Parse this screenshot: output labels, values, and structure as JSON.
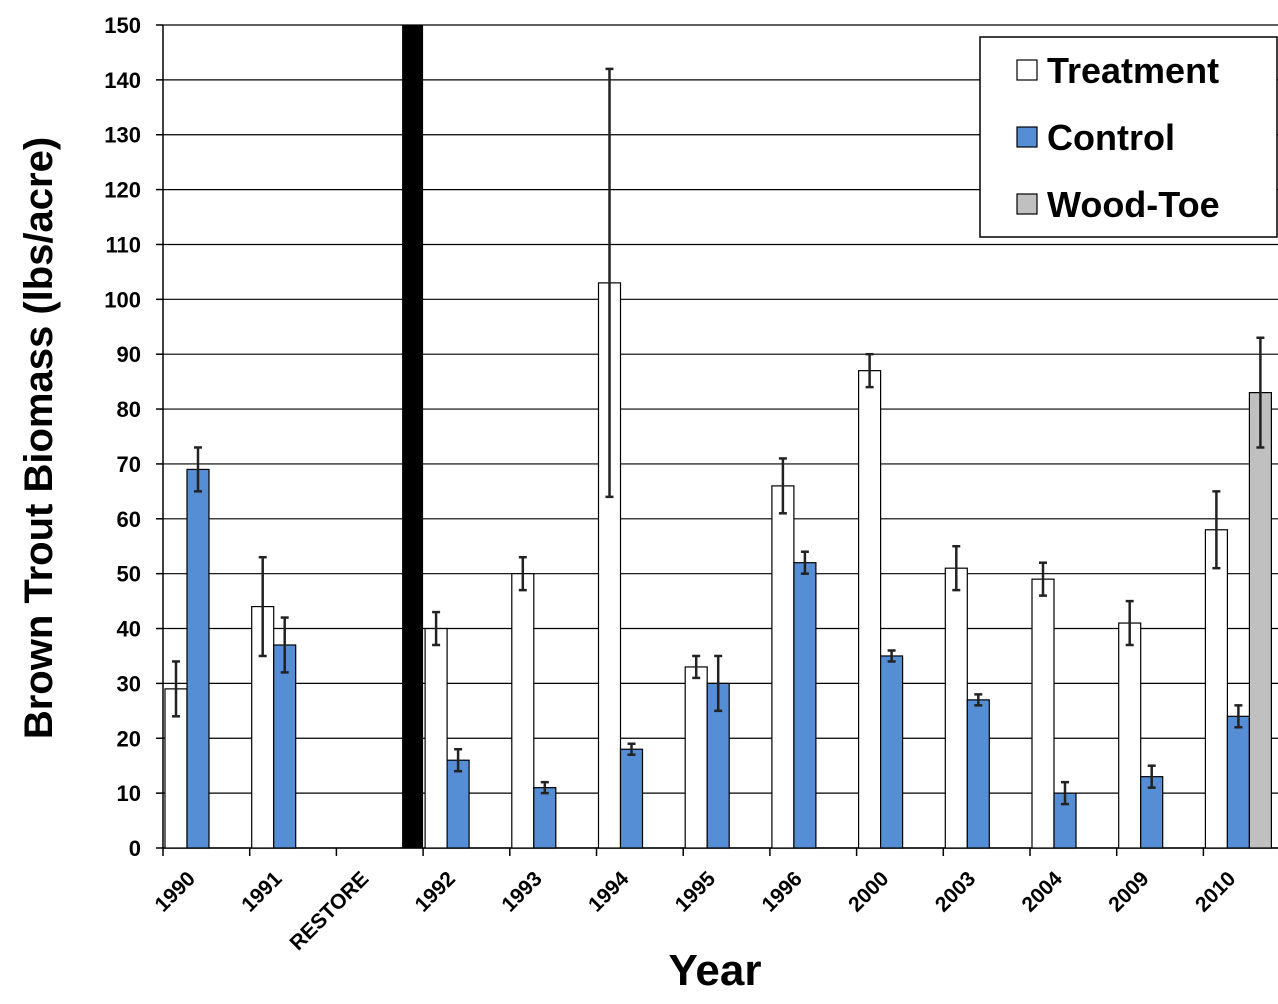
{
  "chart_data": {
    "type": "bar",
    "x_label": "Year",
    "y_label": "Brown Trout Biomass (lbs/acre)",
    "categories": [
      "1990",
      "1991",
      "RESTORE",
      "1992",
      "1993",
      "1994",
      "1995",
      "1996",
      "2000",
      "2003",
      "2004",
      "2009",
      "2010"
    ],
    "series": [
      {
        "name": "Treatment",
        "color": "#ffffff",
        "values": [
          29,
          44,
          null,
          40,
          50,
          103,
          33,
          66,
          87,
          51,
          49,
          41,
          58
        ],
        "errors": [
          5,
          9,
          null,
          3,
          3,
          39,
          2,
          5,
          3,
          4,
          3,
          4,
          7
        ]
      },
      {
        "name": "Control",
        "color": "#558ed5",
        "values": [
          69,
          37,
          null,
          16,
          11,
          18,
          30,
          52,
          35,
          27,
          10,
          13,
          24
        ],
        "errors": [
          4,
          5,
          null,
          2,
          1,
          1,
          5,
          2,
          1,
          1,
          2,
          2,
          2
        ]
      },
      {
        "name": "Wood-Toe",
        "color": "#c0c0c0",
        "values": [
          null,
          null,
          null,
          null,
          null,
          null,
          null,
          null,
          null,
          null,
          null,
          null,
          83
        ],
        "errors": [
          null,
          null,
          null,
          null,
          null,
          null,
          null,
          null,
          null,
          null,
          null,
          null,
          10
        ]
      }
    ],
    "ylim": [
      0,
      150
    ],
    "yticks": [
      0,
      10,
      20,
      30,
      40,
      50,
      60,
      70,
      80,
      90,
      100,
      110,
      120,
      130,
      140,
      150
    ],
    "grid": true,
    "legend": "top-right"
  }
}
